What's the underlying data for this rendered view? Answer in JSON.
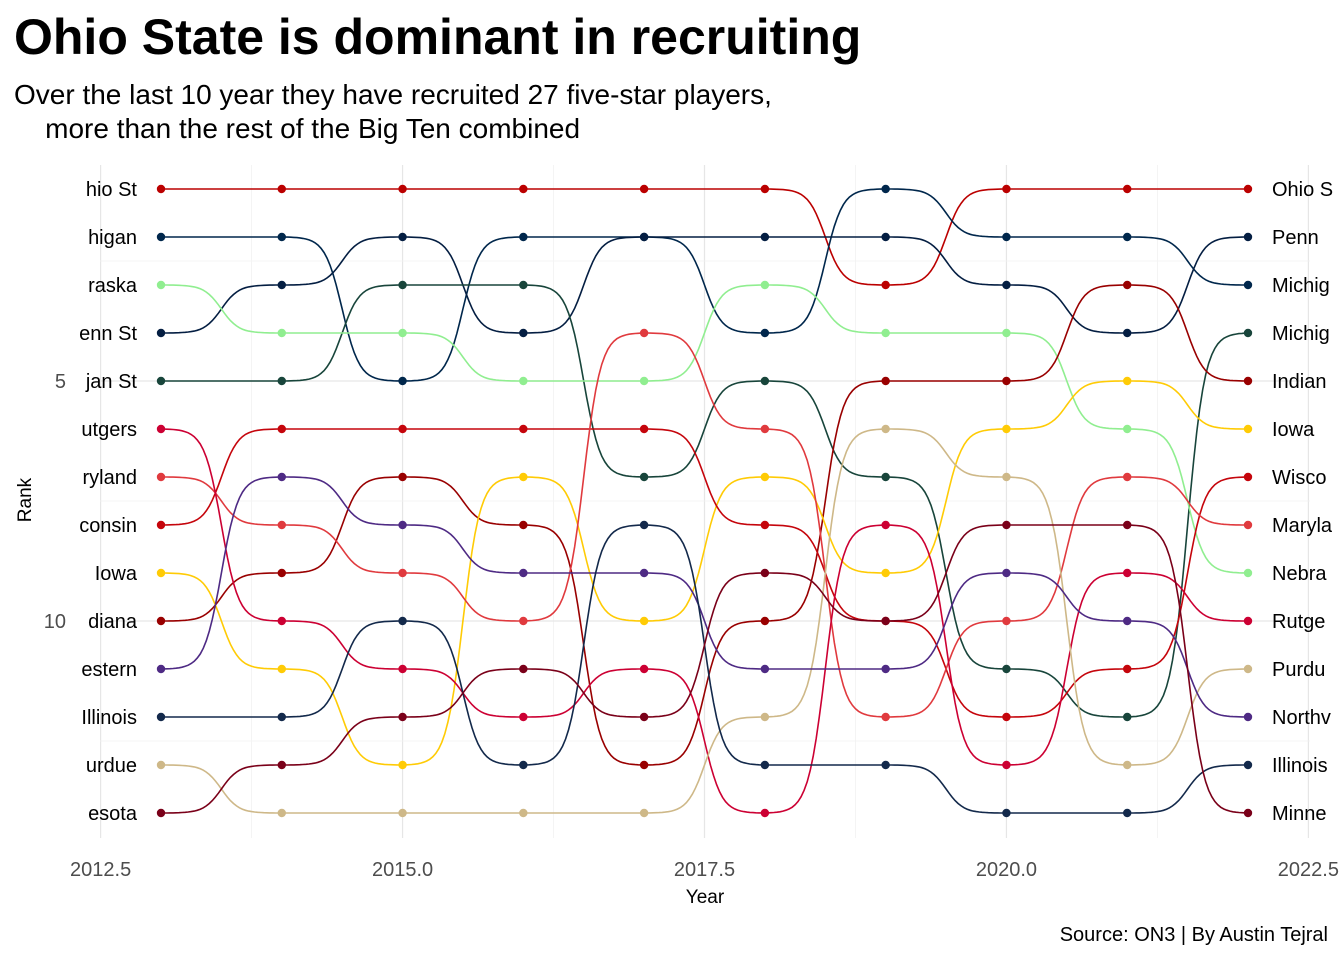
{
  "chart_data": {
    "type": "line",
    "title": "Ohio State is dominant in recruiting",
    "subtitle": "Over the last 10 year they have recruited 27 five-star players,\n    more than the rest of the Big Ten combined",
    "xlabel": "Year",
    "ylabel": "Rank",
    "caption": "Source: ON3 | By Austin Tejral",
    "xlim": [
      2012.5,
      2022.5
    ],
    "ylim": [
      1,
      14
    ],
    "x_ticks": [
      2012.5,
      2015.0,
      2017.5,
      2020.0,
      2022.5
    ],
    "x_tick_labels": [
      "2012.5",
      "2015.0",
      "2017.5",
      "2020.0",
      "2022.5"
    ],
    "y_ticks": [
      5,
      10
    ],
    "y_tick_labels": [
      "5",
      "10"
    ],
    "y_reversed": true,
    "curve": "bump",
    "grid": true,
    "legend": "none",
    "x": [
      2013,
      2014,
      2015,
      2016,
      2017,
      2018,
      2019,
      2020,
      2021,
      2022
    ],
    "left_labels": [
      "hio St",
      "higan",
      "raska",
      "enn St",
      "jan St",
      "utgers",
      "ryland",
      "consin",
      "Iowa",
      "diana",
      "estern",
      "Illinois",
      "urdue",
      "esota"
    ],
    "right_labels": [
      "Ohio S",
      "Penn",
      "Michig",
      "Michig",
      "Indian",
      "Iowa",
      "Wisco",
      "Maryla",
      "Nebra",
      "Rutge",
      "Purdu",
      "Northv",
      "Illinois",
      "Minne"
    ],
    "series": [
      {
        "color": "#BB0000",
        "values": [
          1,
          1,
          1,
          1,
          1,
          1,
          3,
          1,
          1,
          1
        ]
      },
      {
        "color": "#00274C",
        "values": [
          2,
          2,
          5,
          2,
          2,
          4,
          1,
          2,
          2,
          3
        ]
      },
      {
        "color": "#041E42",
        "values": [
          4,
          3,
          2,
          4,
          2,
          2,
          2,
          3,
          4,
          2
        ]
      },
      {
        "color": "#18453B",
        "values": [
          5,
          5,
          3,
          3,
          7,
          5,
          7,
          11,
          12,
          4
        ]
      },
      {
        "color": "#90EE90",
        "values": [
          3,
          4,
          4,
          5,
          5,
          3,
          4,
          4,
          6,
          9
        ]
      },
      {
        "color": "#990000",
        "values": [
          10,
          9,
          7,
          8,
          13,
          10,
          5,
          5,
          3,
          5
        ]
      },
      {
        "color": "#FFCB05",
        "values": [
          9,
          11,
          13,
          7,
          10,
          7,
          9,
          6,
          5,
          6
        ]
      },
      {
        "color": "#C5050C",
        "values": [
          8,
          6,
          6,
          6,
          6,
          8,
          10,
          12,
          11,
          7
        ]
      },
      {
        "color": "#E03A3E",
        "values": [
          7,
          8,
          9,
          10,
          4,
          6,
          12,
          10,
          7,
          8
        ]
      },
      {
        "color": "#CC0033",
        "values": [
          6,
          10,
          11,
          12,
          11,
          14,
          8,
          13,
          9,
          10
        ]
      },
      {
        "color": "#CEB888",
        "values": [
          13,
          14,
          14,
          14,
          14,
          12,
          6,
          7,
          13,
          11
        ]
      },
      {
        "color": "#4E2A84",
        "values": [
          11,
          7,
          8,
          9,
          9,
          11,
          11,
          9,
          10,
          12
        ]
      },
      {
        "color": "#13294B",
        "values": [
          12,
          12,
          10,
          13,
          8,
          13,
          13,
          14,
          14,
          13
        ]
      },
      {
        "color": "#7A0019",
        "values": [
          14,
          13,
          12,
          11,
          12,
          9,
          10,
          8,
          8,
          14
        ]
      }
    ]
  }
}
